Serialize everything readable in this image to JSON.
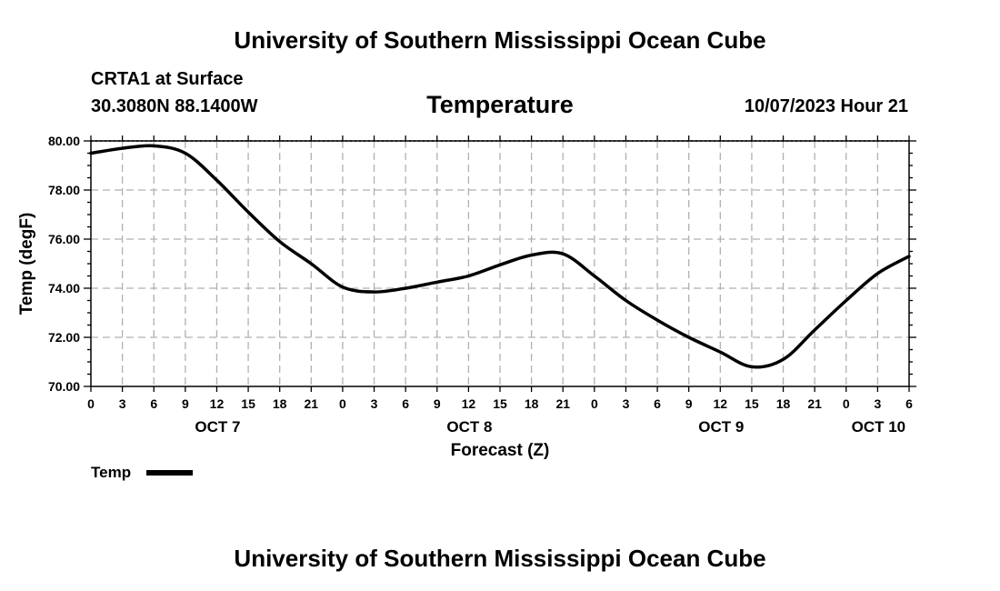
{
  "page": {
    "title_top": "University of Southern Mississippi Ocean Cube",
    "title_bottom": "University of Southern Mississippi Ocean Cube",
    "station": "CRTA1 at Surface",
    "coords": "30.3080N  88.1400W",
    "chart_title": "Temperature",
    "valid_time": "10/07/2023 Hour 21"
  },
  "chart_data": {
    "type": "line",
    "title": "Temperature",
    "xlabel": "Forecast (Z)",
    "ylabel": "Temp (degF)",
    "ylim": [
      70,
      80
    ],
    "xlim": [
      0,
      78
    ],
    "yticks": [
      70,
      72,
      74,
      76,
      78,
      80
    ],
    "ytick_labels": [
      "70.00",
      "72.00",
      "74.00",
      "76.00",
      "78.00",
      "80.00"
    ],
    "xticks": [
      0,
      3,
      6,
      9,
      12,
      15,
      18,
      21,
      24,
      27,
      30,
      33,
      36,
      39,
      42,
      45,
      48,
      51,
      54,
      57,
      60,
      63,
      66,
      69,
      72,
      75,
      78
    ],
    "xtick_labels": [
      "0",
      "3",
      "6",
      "9",
      "12",
      "15",
      "18",
      "21",
      "0",
      "3",
      "6",
      "9",
      "12",
      "15",
      "18",
      "21",
      "0",
      "3",
      "6",
      "9",
      "12",
      "15",
      "18",
      "21",
      "0",
      "3",
      "6"
    ],
    "day_labels": [
      {
        "label": "OCT 7",
        "hour": 12
      },
      {
        "label": "OCT 8",
        "hour": 36
      },
      {
        "label": "OCT 9",
        "hour": 60
      },
      {
        "label": "OCT 10",
        "hour": 75
      }
    ],
    "grid": true,
    "legend": {
      "label": "Temp",
      "position": "bottom-left"
    },
    "series": [
      {
        "name": "Temp",
        "x": [
          0,
          3,
          6,
          9,
          12,
          15,
          18,
          21,
          24,
          27,
          30,
          33,
          36,
          39,
          42,
          45,
          48,
          51,
          54,
          57,
          60,
          63,
          66,
          69,
          72,
          75,
          78
        ],
        "values": [
          79.5,
          79.7,
          79.8,
          79.5,
          78.4,
          77.1,
          75.9,
          75.0,
          74.05,
          73.85,
          74.0,
          74.25,
          74.5,
          74.95,
          75.35,
          75.4,
          74.5,
          73.5,
          72.7,
          72.0,
          71.4,
          70.8,
          71.1,
          72.3,
          73.5,
          74.6,
          75.3
        ]
      }
    ]
  }
}
